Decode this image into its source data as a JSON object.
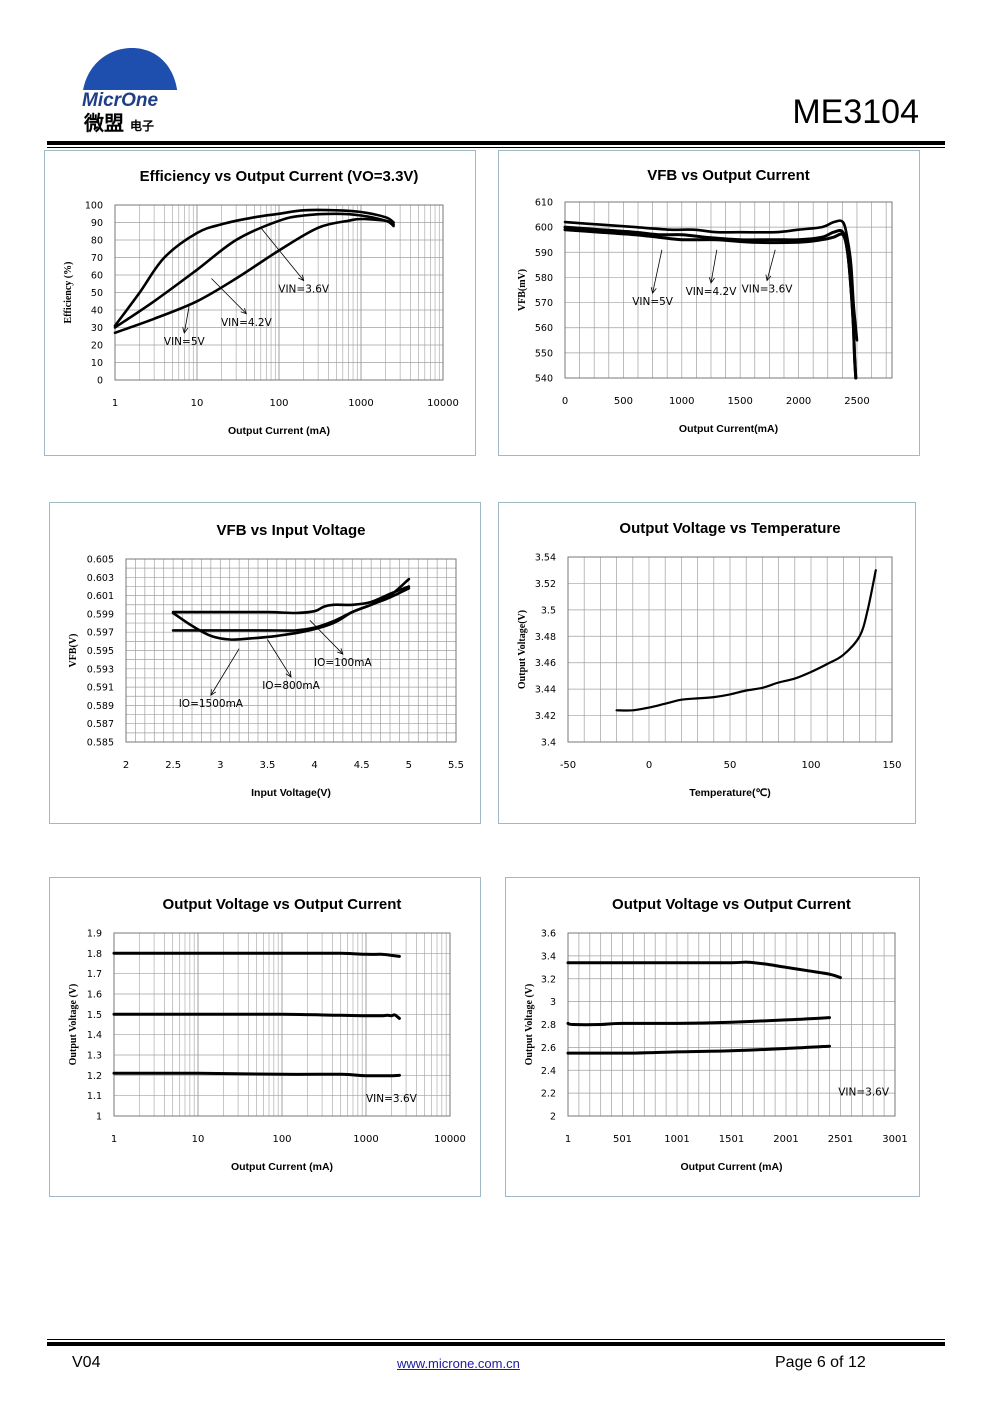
{
  "header": {
    "brand_top": "MicrOne",
    "brand_cn": "微盟",
    "brand_cn_small": "电子",
    "part_number": "ME3104"
  },
  "footer": {
    "version": "V04",
    "url": "www.microne.com.cn",
    "page": "Page 6 of 12"
  },
  "colors": {
    "grid": "#a0a0a0",
    "frame": "#9fb9c6",
    "curve": "#000000",
    "link": "#1a1aa6",
    "logo_blue": "#1e4fae"
  },
  "chart_data": [
    {
      "id": "eff",
      "type": "line",
      "xscale": "log",
      "title": "Efficiency vs Output Current (VO=3.3V)",
      "xlabel": "Output Current (mA)",
      "ylabel": "Efficiency (%)",
      "xlim": [
        1,
        10000
      ],
      "ylim": [
        0,
        100
      ],
      "xticks": [
        "1",
        "10",
        "100",
        "1000",
        "10000"
      ],
      "yticks": [
        "0",
        "10",
        "20",
        "30",
        "40",
        "50",
        "60",
        "70",
        "80",
        "90",
        "100"
      ],
      "series": [
        {
          "name": "VIN=3.6V",
          "width": 2.6,
          "x": [
            1,
            2,
            4,
            10,
            20,
            50,
            100,
            200,
            500,
            1000,
            2000,
            2500
          ],
          "y": [
            31,
            50,
            70,
            84,
            89,
            93,
            95,
            97,
            97,
            96,
            93,
            90
          ]
        },
        {
          "name": "VIN=4.2V",
          "width": 2.6,
          "x": [
            1,
            3,
            10,
            30,
            100,
            200,
            500,
            1000,
            2000,
            2500
          ],
          "y": [
            30,
            45,
            63,
            80,
            91,
            94,
            95,
            94,
            91,
            88
          ]
        },
        {
          "name": "VIN=5V",
          "width": 2.6,
          "x": [
            1,
            3,
            10,
            30,
            100,
            300,
            700,
            1000,
            2000,
            2500
          ],
          "y": [
            27,
            35,
            45,
            58,
            74,
            87,
            91,
            92,
            91,
            89
          ]
        }
      ],
      "annotations": [
        {
          "text": "VIN=3.6V",
          "x": 200,
          "y": 50,
          "ax": 60,
          "ay": 87
        },
        {
          "text": "VIN=4.2V",
          "x": 40,
          "y": 31,
          "ax": 15,
          "ay": 58
        },
        {
          "text": "VIN=5V",
          "x": 7,
          "y": 20,
          "ax": 8,
          "ay": 42
        }
      ]
    },
    {
      "id": "vfbio",
      "type": "line",
      "xscale": "linear",
      "title": "VFB vs Output Current",
      "xlabel": "Output Current(mA)",
      "ylabel": "VFB(mV)",
      "xlim": [
        0,
        2800
      ],
      "ylim": [
        540,
        610
      ],
      "xgrid_step": 125,
      "ygrid_step": 10,
      "xticks": [
        0,
        500,
        1000,
        1500,
        2000,
        2500
      ],
      "yticks": [
        540,
        550,
        560,
        570,
        580,
        590,
        600,
        610
      ],
      "series": [
        {
          "name": "VIN=3.6V",
          "width": 2.6,
          "x": [
            0,
            300,
            600,
            900,
            1100,
            1300,
            1500,
            1800,
            2000,
            2200,
            2300,
            2380,
            2420,
            2450,
            2470,
            2490,
            2500
          ],
          "y": [
            602,
            601,
            600,
            599,
            599,
            598,
            598,
            598,
            599,
            600,
            602,
            602,
            595,
            585,
            570,
            560,
            555
          ]
        },
        {
          "name": "VIN=4.2V",
          "width": 3,
          "x": [
            0,
            300,
            600,
            800,
            1000,
            1200,
            1500,
            1800,
            2000,
            2200,
            2300,
            2380,
            2420,
            2450,
            2470,
            2480,
            2490
          ],
          "y": [
            600,
            599,
            598,
            597,
            597,
            596,
            595,
            595,
            595,
            596,
            598,
            598,
            590,
            575,
            560,
            548,
            540
          ]
        },
        {
          "name": "VIN=5V",
          "width": 3,
          "x": [
            0,
            300,
            600,
            800,
            1000,
            1300,
            1600,
            2000,
            2200,
            2300,
            2380,
            2420,
            2450,
            2470,
            2480,
            2490
          ],
          "y": [
            599,
            598,
            597,
            596,
            595,
            595,
            594,
            594,
            595,
            596,
            597,
            590,
            575,
            560,
            548,
            540
          ]
        }
      ],
      "annotations": [
        {
          "text": "VIN=5V",
          "x": 750,
          "y": 569,
          "ax": 830,
          "ay": 591
        },
        {
          "text": "VIN=4.2V",
          "x": 1250,
          "y": 573,
          "ax": 1300,
          "ay": 591
        },
        {
          "text": "VIN=3.6V",
          "x": 1730,
          "y": 574,
          "ax": 1800,
          "ay": 591
        }
      ]
    },
    {
      "id": "vfbvin",
      "type": "line",
      "xscale": "linear",
      "title": "VFB vs Input Voltage",
      "xlabel": "Input Voltage(V)",
      "ylabel": "VFB(V)",
      "xlim": [
        2,
        5.5
      ],
      "ylim": [
        0.585,
        0.605
      ],
      "xgrid_step": 0.1,
      "ygrid_step": 0.001,
      "xticks": [
        2,
        2.5,
        3,
        3.5,
        4,
        4.5,
        5,
        5.5
      ],
      "yticks": [
        0.585,
        0.587,
        0.589,
        0.591,
        0.593,
        0.595,
        0.597,
        0.599,
        0.601,
        0.603,
        0.605
      ],
      "series": [
        {
          "name": "IO=100mA",
          "width": 2.6,
          "x": [
            2.5,
            3,
            3.5,
            3.8,
            4.0,
            4.1,
            4.2,
            4.4,
            4.6,
            4.8,
            5.0
          ],
          "y": [
            0.5992,
            0.5992,
            0.5992,
            0.5991,
            0.5993,
            0.5998,
            0.6,
            0.6,
            0.6003,
            0.6012,
            0.602
          ]
        },
        {
          "name": "IO=800mA",
          "width": 2.6,
          "x": [
            2.5,
            3,
            3.5,
            3.8,
            4.0,
            4.2,
            4.4,
            4.6,
            4.8,
            5.0
          ],
          "y": [
            0.5972,
            0.5972,
            0.5972,
            0.5972,
            0.5975,
            0.5982,
            0.5992,
            0.6,
            0.6008,
            0.6018
          ]
        },
        {
          "name": "IO=1500mA",
          "width": 2.6,
          "x": [
            2.5,
            2.7,
            2.9,
            3.1,
            3.3,
            3.6,
            3.9,
            4.2,
            4.4,
            4.6,
            4.8,
            5.0
          ],
          "y": [
            0.5991,
            0.5977,
            0.5966,
            0.5962,
            0.5963,
            0.5966,
            0.5971,
            0.598,
            0.5992,
            0.6,
            0.601,
            0.6028
          ]
        }
      ],
      "annotations": [
        {
          "text": "IO=100mA",
          "x": 4.3,
          "y": 0.5933,
          "ax": 3.95,
          "ay": 0.5983
        },
        {
          "text": "IO=800mA",
          "x": 3.75,
          "y": 0.5908,
          "ax": 3.5,
          "ay": 0.5962
        },
        {
          "text": "IO=1500mA",
          "x": 2.9,
          "y": 0.5888,
          "ax": 3.2,
          "ay": 0.5952
        }
      ]
    },
    {
      "id": "vtemp",
      "type": "line",
      "xscale": "linear",
      "title": "Output Voltage vs Temperature",
      "xlabel": "Temperature(℃)",
      "ylabel": "Output Voltage(V)",
      "xlim": [
        -50,
        150
      ],
      "ylim": [
        3.4,
        3.54
      ],
      "xgrid_step": 10,
      "ygrid_step": 0.02,
      "xticks": [
        -50,
        0,
        50,
        100,
        150
      ],
      "yticks": [
        3.4,
        3.42,
        3.44,
        3.46,
        3.48,
        3.5,
        3.52,
        3.54
      ],
      "series": [
        {
          "name": "",
          "width": 2.2,
          "x": [
            -20,
            -10,
            0,
            10,
            20,
            30,
            40,
            50,
            60,
            70,
            80,
            90,
            100,
            110,
            120,
            130,
            135,
            140
          ],
          "y": [
            3.424,
            3.424,
            3.426,
            3.429,
            3.432,
            3.433,
            3.434,
            3.436,
            3.439,
            3.441,
            3.445,
            3.448,
            3.453,
            3.459,
            3.466,
            3.48,
            3.5,
            3.53
          ]
        }
      ],
      "annotations": []
    },
    {
      "id": "vo_log",
      "type": "line",
      "xscale": "log",
      "title": "Output Voltage vs Output Current",
      "xlabel": "Output Current (mA)",
      "ylabel": "Output Voltage (V)",
      "xlim": [
        1,
        10000
      ],
      "ylim": [
        1,
        1.9
      ],
      "ygrid_step": 0.1,
      "xticks": [
        "1",
        "10",
        "100",
        "1000",
        "10000"
      ],
      "yticks": [
        "1",
        "1.1",
        "1.2",
        "1.3",
        "1.4",
        "1.5",
        "1.6",
        "1.7",
        "1.8",
        "1.9"
      ],
      "series": [
        {
          "name": "",
          "width": 3,
          "x": [
            1,
            10,
            100,
            500,
            1000,
            1500,
            2000,
            2500
          ],
          "y": [
            1.8,
            1.8,
            1.8,
            1.8,
            1.795,
            1.795,
            1.79,
            1.785
          ]
        },
        {
          "name": "",
          "width": 3,
          "x": [
            1,
            10,
            100,
            500,
            1000,
            1500,
            1800,
            2000,
            2200,
            2500
          ],
          "y": [
            1.5,
            1.5,
            1.5,
            1.495,
            1.493,
            1.493,
            1.495,
            1.493,
            1.497,
            1.48
          ]
        },
        {
          "name": "",
          "width": 3,
          "x": [
            1,
            10,
            100,
            500,
            800,
            1000,
            1500,
            2000,
            2500
          ],
          "y": [
            1.21,
            1.21,
            1.205,
            1.205,
            1.2,
            1.198,
            1.198,
            1.198,
            1.2
          ]
        }
      ],
      "labels": [
        {
          "text": "VIN=3.6V",
          "x": 1000,
          "y": 1.07
        }
      ]
    },
    {
      "id": "vo_lin",
      "type": "line",
      "xscale": "linear",
      "title": "Output Voltage vs Output Current",
      "xlabel": "Output Current (mA)",
      "ylabel": "Output Voltage (V)",
      "xlim": [
        1,
        3001
      ],
      "ylim": [
        2,
        3.6
      ],
      "xgrid_step": 100,
      "ygrid_step": 0.2,
      "xticks": [
        1,
        501,
        1001,
        1501,
        2001,
        2501,
        3001
      ],
      "yticks": [
        "2",
        "2.2",
        "2.4",
        "2.6",
        "2.8",
        "3",
        "3.2",
        "3.4",
        "3.6"
      ],
      "series": [
        {
          "name": "",
          "width": 3,
          "x": [
            1,
            500,
            1000,
            1500,
            1650,
            1800,
            2000,
            2200,
            2400,
            2500
          ],
          "y": [
            3.34,
            3.34,
            3.34,
            3.34,
            3.345,
            3.33,
            3.3,
            3.27,
            3.24,
            3.21
          ]
        },
        {
          "name": "",
          "width": 3,
          "x": [
            1,
            50,
            300,
            500,
            1000,
            1500,
            2000,
            2400
          ],
          "y": [
            2.81,
            2.8,
            2.8,
            2.81,
            2.81,
            2.82,
            2.84,
            2.86
          ]
        },
        {
          "name": "",
          "width": 3,
          "x": [
            1,
            600,
            1000,
            1500,
            2000,
            2400
          ],
          "y": [
            2.55,
            2.55,
            2.56,
            2.57,
            2.59,
            2.61
          ]
        }
      ],
      "labels": [
        {
          "text": "VIN=3.6V",
          "x": 2480,
          "y": 2.18
        }
      ]
    }
  ]
}
